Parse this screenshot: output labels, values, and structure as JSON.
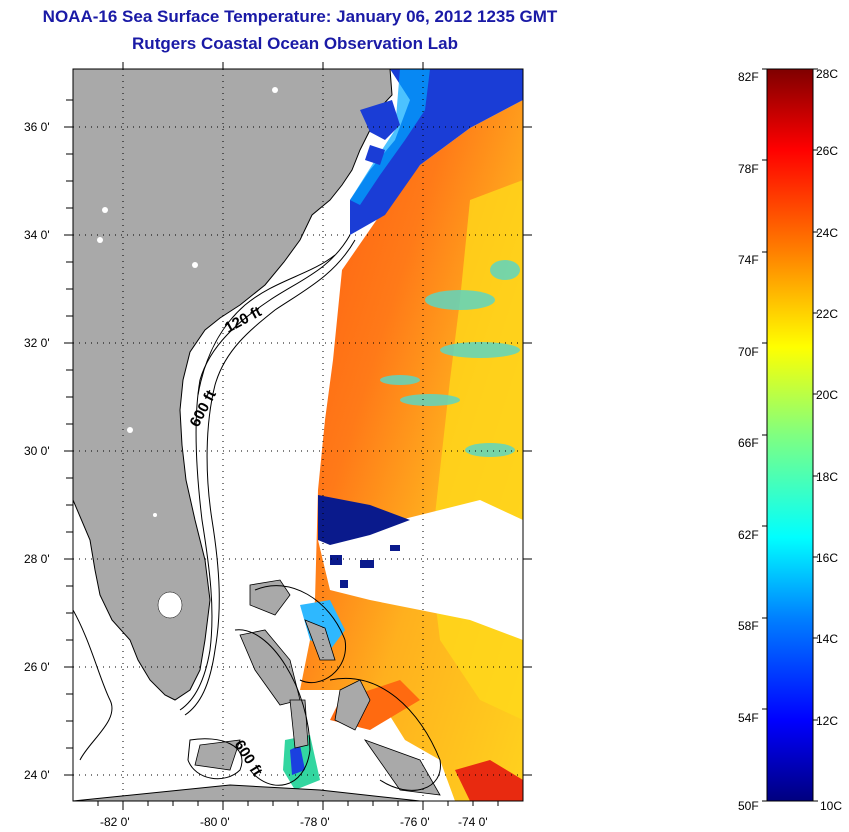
{
  "title": "NOAA-16 Sea Surface Temperature:  January 06, 2012 1235 GMT",
  "subtitle": "Rutgers Coastal Ocean Observation Lab",
  "map": {
    "lat_ticks": [
      "36 0'",
      "34 0'",
      "32 0'",
      "30 0'",
      "28 0'",
      "26 0'",
      "24 0'"
    ],
    "lon_ticks": [
      "-82 0'",
      "-80 0'",
      "-78 0'",
      "-76 0'",
      "-74 0'"
    ],
    "contours": [
      "120 ft",
      "600 ft",
      "600 ft"
    ],
    "colors": {
      "land": "#a9a9a9",
      "frame": "#000000"
    }
  },
  "colorbar": {
    "f_labels": [
      "82F",
      "78F",
      "74F",
      "70F",
      "66F",
      "62F",
      "58F",
      "54F",
      "50F"
    ],
    "c_labels": [
      "28C",
      "26C",
      "24C",
      "22C",
      "20C",
      "18C",
      "16C",
      "14C",
      "12C",
      "10C"
    ],
    "range_c": [
      10,
      28
    ],
    "range_f": [
      50,
      82
    ]
  }
}
